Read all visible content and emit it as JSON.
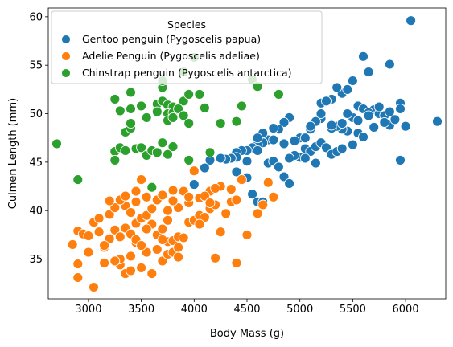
{
  "chart_data": {
    "type": "scatter",
    "title": "",
    "xlabel": "Body Mass (g)",
    "ylabel": "Culmen Length (mm)",
    "xlim": [
      2620,
      6380
    ],
    "ylim": [
      30.9,
      60.9
    ],
    "xticks": [
      3000,
      3500,
      4000,
      4500,
      5000,
      5500,
      6000
    ],
    "yticks": [
      35,
      40,
      45,
      50,
      55,
      60
    ],
    "xtick_labels": [
      "3000",
      "3500",
      "4000",
      "4500",
      "5000",
      "5500",
      "6000"
    ],
    "ytick_labels": [
      "35",
      "40",
      "45",
      "50",
      "55",
      "60"
    ],
    "grid": false,
    "legend": {
      "title": "Species",
      "position": "top-left"
    },
    "series": [
      {
        "name": "Gentoo penguin (Pygoscelis papua)",
        "color": "#1f77b4",
        "points": [
          [
            6050,
            59.6
          ],
          [
            5600,
            55.9
          ],
          [
            5650,
            54.3
          ],
          [
            5850,
            55.1
          ],
          [
            5500,
            53.4
          ],
          [
            5400,
            52.1
          ],
          [
            5350,
            52.7
          ],
          [
            5450,
            52.5
          ],
          [
            5300,
            51.5
          ],
          [
            5200,
            51.1
          ],
          [
            5250,
            51.3
          ],
          [
            5550,
            50.8
          ],
          [
            5600,
            50.5
          ],
          [
            5700,
            50.4
          ],
          [
            5750,
            50.0
          ],
          [
            5800,
            49.8
          ],
          [
            5650,
            50.1
          ],
          [
            5950,
            51.1
          ],
          [
            6000,
            48.7
          ],
          [
            5850,
            48.8
          ],
          [
            5900,
            49.4
          ],
          [
            5950,
            45.2
          ],
          [
            6300,
            49.2
          ],
          [
            5500,
            49.6
          ],
          [
            5450,
            48.2
          ],
          [
            5400,
            48.4
          ],
          [
            5350,
            48.7
          ],
          [
            5300,
            48.5
          ],
          [
            5200,
            49.5
          ],
          [
            5150,
            49.2
          ],
          [
            5100,
            48.4
          ],
          [
            5000,
            47.5
          ],
          [
            4950,
            47.2
          ],
          [
            4900,
            49.6
          ],
          [
            4850,
            49.1
          ],
          [
            4800,
            48.4
          ],
          [
            4750,
            48.5
          ],
          [
            4700,
            47.3
          ],
          [
            4650,
            47.0
          ],
          [
            4600,
            46.8
          ],
          [
            4550,
            46.5
          ],
          [
            4500,
            46.2
          ],
          [
            4450,
            46.2
          ],
          [
            4400,
            46.0
          ],
          [
            4400,
            45.5
          ],
          [
            4350,
            45.4
          ],
          [
            4300,
            45.3
          ],
          [
            4250,
            45.4
          ],
          [
            4150,
            45.2
          ],
          [
            4100,
            44.4
          ],
          [
            4000,
            42.7
          ],
          [
            4400,
            44.0
          ],
          [
            4500,
            43.4
          ],
          [
            4550,
            41.7
          ],
          [
            4600,
            40.9
          ],
          [
            4650,
            40.9
          ],
          [
            4700,
            44.9
          ],
          [
            4750,
            45.1
          ],
          [
            4800,
            44.5
          ],
          [
            4850,
            43.5
          ],
          [
            4900,
            42.8
          ],
          [
            5000,
            45.5
          ],
          [
            5050,
            46.4
          ],
          [
            5100,
            46.1
          ],
          [
            5150,
            46.6
          ],
          [
            5200,
            47.0
          ],
          [
            5250,
            46.5
          ],
          [
            5300,
            45.8
          ],
          [
            5350,
            46.1
          ],
          [
            5400,
            46.4
          ],
          [
            5500,
            46.8
          ],
          [
            5550,
            48.0
          ],
          [
            5600,
            47.6
          ],
          [
            5150,
            44.9
          ],
          [
            5050,
            45.4
          ],
          [
            4950,
            45.7
          ],
          [
            4850,
            46.9
          ],
          [
            4750,
            47.3
          ],
          [
            4650,
            48.0
          ],
          [
            4600,
            47.5
          ],
          [
            4600,
            46.2
          ],
          [
            4500,
            45.1
          ],
          [
            4900,
            45.4
          ],
          [
            5050,
            47.5
          ],
          [
            5100,
            48.7
          ],
          [
            5200,
            50.0
          ],
          [
            5300,
            48.8
          ],
          [
            5400,
            49.0
          ],
          [
            5450,
            50.0
          ],
          [
            5550,
            49.3
          ],
          [
            5650,
            49.8
          ],
          [
            5700,
            48.6
          ],
          [
            5800,
            49.1
          ],
          [
            5850,
            50.2
          ],
          [
            5950,
            50.5
          ],
          [
            5750,
            50.7
          ]
        ]
      },
      {
        "name": "Adelie Penguin (Pygoscelis adeliae)",
        "color": "#ff7f0e",
        "points": [
          [
            3050,
            32.1
          ],
          [
            2900,
            33.1
          ],
          [
            2900,
            34.5
          ],
          [
            3150,
            34.6
          ],
          [
            3300,
            34.4
          ],
          [
            3350,
            33.5
          ],
          [
            3400,
            33.8
          ],
          [
            3500,
            34.1
          ],
          [
            3600,
            33.5
          ],
          [
            3300,
            35.0
          ],
          [
            3400,
            35.3
          ],
          [
            3450,
            36.7
          ],
          [
            3550,
            35.7
          ],
          [
            3650,
            36.0
          ],
          [
            3700,
            34.8
          ],
          [
            3750,
            35.5
          ],
          [
            3800,
            35.7
          ],
          [
            3850,
            35.2
          ],
          [
            4200,
            35.1
          ],
          [
            4400,
            34.6
          ],
          [
            2850,
            36.5
          ],
          [
            2900,
            37.9
          ],
          [
            2950,
            37.6
          ],
          [
            3000,
            37.4
          ],
          [
            3050,
            38.8
          ],
          [
            3100,
            37.8
          ],
          [
            3150,
            36.2
          ],
          [
            3200,
            37.1
          ],
          [
            3250,
            38.0
          ],
          [
            3300,
            37.3
          ],
          [
            3350,
            38.2
          ],
          [
            3400,
            37.6
          ],
          [
            3450,
            38.7
          ],
          [
            3500,
            39.2
          ],
          [
            3550,
            39.5
          ],
          [
            3600,
            38.6
          ],
          [
            3650,
            37.5
          ],
          [
            3700,
            38.1
          ],
          [
            3750,
            36.8
          ],
          [
            3800,
            36.9
          ],
          [
            3850,
            37.3
          ],
          [
            3900,
            37.2
          ],
          [
            3950,
            38.8
          ],
          [
            4000,
            39.0
          ],
          [
            4050,
            39.5
          ],
          [
            4100,
            39.3
          ],
          [
            4150,
            40.2
          ],
          [
            4200,
            40.6
          ],
          [
            4250,
            37.8
          ],
          [
            4300,
            39.7
          ],
          [
            4350,
            40.9
          ],
          [
            4400,
            41.1
          ],
          [
            4500,
            37.5
          ],
          [
            4600,
            39.7
          ],
          [
            4650,
            40.6
          ],
          [
            4700,
            42.9
          ],
          [
            4750,
            41.4
          ],
          [
            3200,
            39.6
          ],
          [
            3250,
            40.3
          ],
          [
            3350,
            40.5
          ],
          [
            3450,
            40.9
          ],
          [
            3550,
            41.4
          ],
          [
            3650,
            41.1
          ],
          [
            3750,
            40.0
          ],
          [
            3850,
            40.3
          ],
          [
            3950,
            40.8
          ],
          [
            4050,
            41.3
          ],
          [
            4150,
            42.0
          ],
          [
            4250,
            42.5
          ],
          [
            4350,
            42.2
          ],
          [
            4450,
            43.2
          ],
          [
            3200,
            41.0
          ],
          [
            3300,
            41.1
          ],
          [
            3500,
            43.2
          ],
          [
            3600,
            42.5
          ],
          [
            3700,
            41.6
          ],
          [
            3800,
            42.1
          ],
          [
            3900,
            42.0
          ],
          [
            4000,
            44.1
          ],
          [
            4100,
            41.5
          ],
          [
            4200,
            42.3
          ],
          [
            3100,
            39.2
          ],
          [
            3400,
            39.8
          ],
          [
            3600,
            40.2
          ],
          [
            3800,
            41.0
          ],
          [
            3950,
            41.4
          ],
          [
            4150,
            40.8
          ],
          [
            3000,
            35.7
          ],
          [
            3150,
            36.4
          ],
          [
            3450,
            37.0
          ],
          [
            3750,
            39.0
          ],
          [
            4050,
            38.6
          ],
          [
            3350,
            41.5
          ],
          [
            3550,
            38.1
          ],
          [
            3850,
            36.2
          ],
          [
            3700,
            37.0
          ],
          [
            3500,
            36.4
          ],
          [
            3250,
            34.8
          ],
          [
            3450,
            42.0
          ]
        ]
      },
      {
        "name": "Chinstrap penguin (Pygoscelis antarctica)",
        "color": "#2ca02c",
        "points": [
          [
            2700,
            46.9
          ],
          [
            2900,
            43.2
          ],
          [
            3250,
            46.1
          ],
          [
            3250,
            45.2
          ],
          [
            3300,
            46.5
          ],
          [
            3350,
            48.1
          ],
          [
            3400,
            48.5
          ],
          [
            3450,
            46.4
          ],
          [
            3500,
            46.5
          ],
          [
            3550,
            45.7
          ],
          [
            3600,
            46.2
          ],
          [
            3650,
            46.0
          ],
          [
            3700,
            47.0
          ],
          [
            3750,
            45.8
          ],
          [
            3800,
            46.6
          ],
          [
            3250,
            51.5
          ],
          [
            3300,
            50.3
          ],
          [
            3400,
            50.5
          ],
          [
            3500,
            50.8
          ],
          [
            3550,
            49.6
          ],
          [
            3650,
            51.0
          ],
          [
            3700,
            51.3
          ],
          [
            3750,
            50.9
          ],
          [
            3800,
            50.7
          ],
          [
            3900,
            51.3
          ],
          [
            3950,
            52.0
          ],
          [
            4050,
            52.0
          ],
          [
            4100,
            50.6
          ],
          [
            3700,
            52.7
          ],
          [
            3750,
            50.0
          ],
          [
            3800,
            50.1
          ],
          [
            3850,
            50.5
          ],
          [
            3900,
            49.8
          ],
          [
            3950,
            49.0
          ],
          [
            3750,
            49.3
          ],
          [
            3800,
            49.6
          ],
          [
            3400,
            52.2
          ],
          [
            3700,
            53.4
          ],
          [
            3900,
            54.3
          ],
          [
            4000,
            55.8
          ],
          [
            4550,
            53.5
          ],
          [
            4600,
            52.8
          ],
          [
            4800,
            52.0
          ],
          [
            4450,
            50.8
          ],
          [
            4250,
            49.0
          ],
          [
            4400,
            49.2
          ],
          [
            3950,
            45.2
          ],
          [
            4150,
            46.0
          ],
          [
            3400,
            49.0
          ],
          [
            3350,
            46.2
          ],
          [
            3600,
            42.4
          ],
          [
            3650,
            50.2
          ]
        ]
      }
    ]
  }
}
